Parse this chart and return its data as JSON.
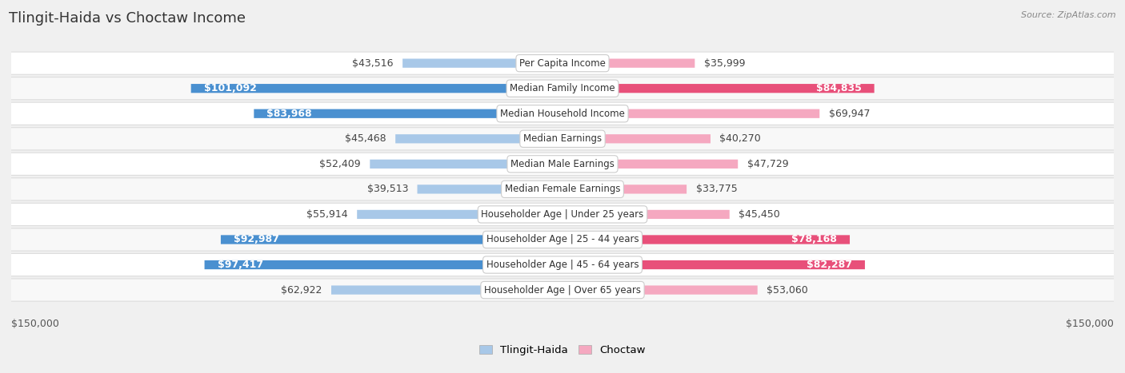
{
  "title": "Tlingit-Haida vs Choctaw Income",
  "source": "Source: ZipAtlas.com",
  "categories": [
    "Per Capita Income",
    "Median Family Income",
    "Median Household Income",
    "Median Earnings",
    "Median Male Earnings",
    "Median Female Earnings",
    "Householder Age | Under 25 years",
    "Householder Age | 25 - 44 years",
    "Householder Age | 45 - 64 years",
    "Householder Age | Over 65 years"
  ],
  "tlingit_values": [
    43516,
    101092,
    83968,
    45468,
    52409,
    39513,
    55914,
    92987,
    97417,
    62922
  ],
  "choctaw_values": [
    35999,
    84835,
    69947,
    40270,
    47729,
    33775,
    45450,
    78168,
    82287,
    53060
  ],
  "tlingit_labels": [
    "$43,516",
    "$101,092",
    "$83,968",
    "$45,468",
    "$52,409",
    "$39,513",
    "$55,914",
    "$92,987",
    "$97,417",
    "$62,922"
  ],
  "choctaw_labels": [
    "$35,999",
    "$84,835",
    "$69,947",
    "$40,270",
    "$47,729",
    "$33,775",
    "$45,450",
    "$78,168",
    "$82,287",
    "$53,060"
  ],
  "tlingit_color_light": "#a8c8e8",
  "tlingit_color_dark": "#4a90d0",
  "choctaw_color_light": "#f5a8c0",
  "choctaw_color_dark": "#e8507a",
  "tlingit_dark_threshold": 80000,
  "choctaw_dark_threshold": 70000,
  "max_val": 150000,
  "xlabel_left": "$150,000",
  "xlabel_right": "$150,000",
  "legend_label_tlingit": "Tlingit-Haida",
  "legend_label_choctaw": "Choctaw",
  "background_color": "#f0f0f0",
  "row_bg_odd": "#f8f8f8",
  "row_bg_even": "#ffffff",
  "title_fontsize": 13,
  "label_fontsize": 9,
  "category_fontsize": 8.5,
  "source_fontsize": 8
}
